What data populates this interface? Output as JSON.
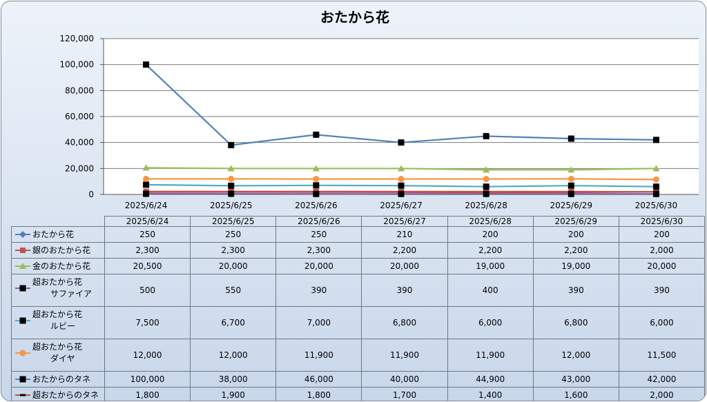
{
  "chart_data": {
    "type": "line",
    "title": "おたから花",
    "xlabel": "",
    "ylabel": "",
    "ylim": [
      0,
      120000
    ],
    "yticks": [
      "0",
      "20,000",
      "40,000",
      "60,000",
      "80,000",
      "100,000",
      "120,000"
    ],
    "grid": true,
    "categories": [
      "2025/6/24",
      "2025/6/25",
      "2025/6/26",
      "2025/6/27",
      "2025/6/28",
      "2025/6/29",
      "2025/6/30"
    ],
    "series": [
      {
        "name": "おたから花",
        "color": "#4f81bd",
        "marker": "diamond",
        "values": [
          250,
          250,
          250,
          210,
          200,
          200,
          200
        ],
        "labels": [
          "250",
          "250",
          "250",
          "210",
          "200",
          "200",
          "200"
        ]
      },
      {
        "name": "銀のおたから花",
        "color": "#c0504d",
        "marker": "square",
        "values": [
          2300,
          2300,
          2300,
          2200,
          2200,
          2200,
          2000
        ],
        "labels": [
          "2,300",
          "2,300",
          "2,300",
          "2,200",
          "2,200",
          "2,200",
          "2,000"
        ]
      },
      {
        "name": "金のおたから花",
        "color": "#9bbb59",
        "marker": "triangle",
        "values": [
          20500,
          20000,
          20000,
          20000,
          19000,
          19000,
          20000
        ],
        "labels": [
          "20,500",
          "20,000",
          "20,000",
          "20,000",
          "19,000",
          "19,000",
          "20,000"
        ]
      },
      {
        "name": "超おたから花\nサファイア",
        "color": "#8064a2",
        "marker": "blacksquare",
        "values": [
          500,
          550,
          390,
          390,
          400,
          390,
          390
        ],
        "labels": [
          "500",
          "550",
          "390",
          "390",
          "400",
          "390",
          "390"
        ]
      },
      {
        "name": "超おたから花\nルビー",
        "color": "#4bacc6",
        "marker": "blacksquare",
        "values": [
          7500,
          6700,
          7000,
          6800,
          6000,
          6800,
          6000
        ],
        "labels": [
          "7,500",
          "6,700",
          "7,000",
          "6,800",
          "6,000",
          "6,800",
          "6,000"
        ]
      },
      {
        "name": "超おたから花\nダイヤ",
        "color": "#f79646",
        "marker": "circle",
        "values": [
          12000,
          12000,
          11900,
          11900,
          11900,
          12000,
          11500
        ],
        "labels": [
          "12,000",
          "12,000",
          "11,900",
          "11,900",
          "11,900",
          "12,000",
          "11,500"
        ]
      },
      {
        "name": "おたからのタネ",
        "color": "#4f81bd",
        "marker": "blacksquare",
        "values": [
          100000,
          38000,
          46000,
          40000,
          44900,
          43000,
          42000
        ],
        "labels": [
          "100,000",
          "38,000",
          "46,000",
          "40,000",
          "44,900",
          "43,000",
          "42,000"
        ]
      },
      {
        "name": "超おたからのタネ",
        "color": "#c0504d",
        "marker": "dash",
        "values": [
          1800,
          1900,
          1800,
          1700,
          1400,
          1600,
          2000
        ],
        "labels": [
          "1,800",
          "1,900",
          "1,800",
          "1,700",
          "1,400",
          "1,600",
          "2,000"
        ]
      }
    ]
  }
}
